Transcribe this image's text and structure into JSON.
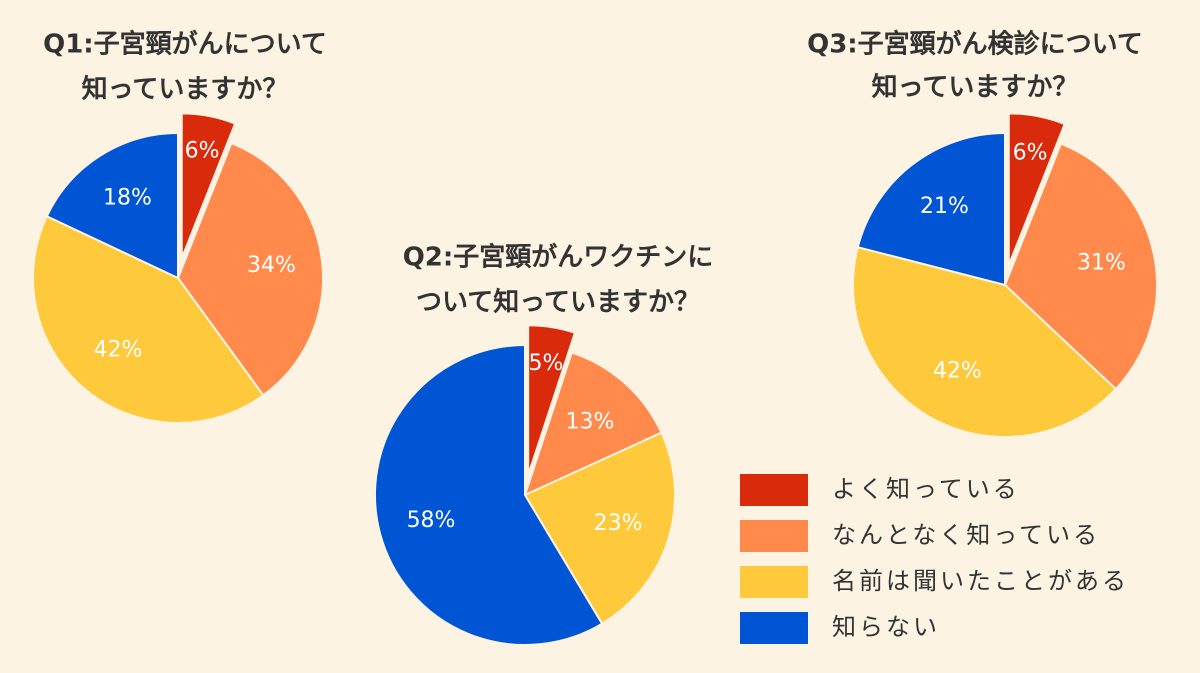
{
  "chart_data": [
    {
      "type": "pie",
      "title": [
        "Q1:子宮頸がんについて",
        "知っていますか？"
      ],
      "categories": [
        "よく知っている",
        "なんとなく知っている",
        "名前は聞いたことがある",
        "知らない"
      ],
      "values": [
        6,
        34,
        42,
        18
      ],
      "value_labels": [
        "6%",
        "34%",
        "42%",
        "18%"
      ],
      "colors": [
        "#d92b0c",
        "#ff8a4c",
        "#ffc93c",
        "#0055d4"
      ]
    },
    {
      "type": "pie",
      "title": [
        "Q2:子宮頸がんワクチンに",
        "ついて知っていますか？"
      ],
      "categories": [
        "よく知っている",
        "なんとなく知っている",
        "名前は聞いたことがある",
        "知らない"
      ],
      "values": [
        5,
        13,
        23,
        58
      ],
      "value_labels": [
        "5%",
        "13%",
        "23%",
        "58%"
      ],
      "colors": [
        "#d92b0c",
        "#ff8a4c",
        "#ffc93c",
        "#0055d4"
      ]
    },
    {
      "type": "pie",
      "title": [
        "Q3:子宮頸がん検診について",
        "知っていますか？"
      ],
      "categories": [
        "よく知っている",
        "なんとなく知っている",
        "名前は聞いたことがある",
        "知らない"
      ],
      "values": [
        6,
        31,
        42,
        21
      ],
      "value_labels": [
        "6%",
        "31%",
        "42%",
        "21%"
      ],
      "colors": [
        "#d92b0c",
        "#ff8a4c",
        "#ffc93c",
        "#0055d4"
      ]
    }
  ]
}
